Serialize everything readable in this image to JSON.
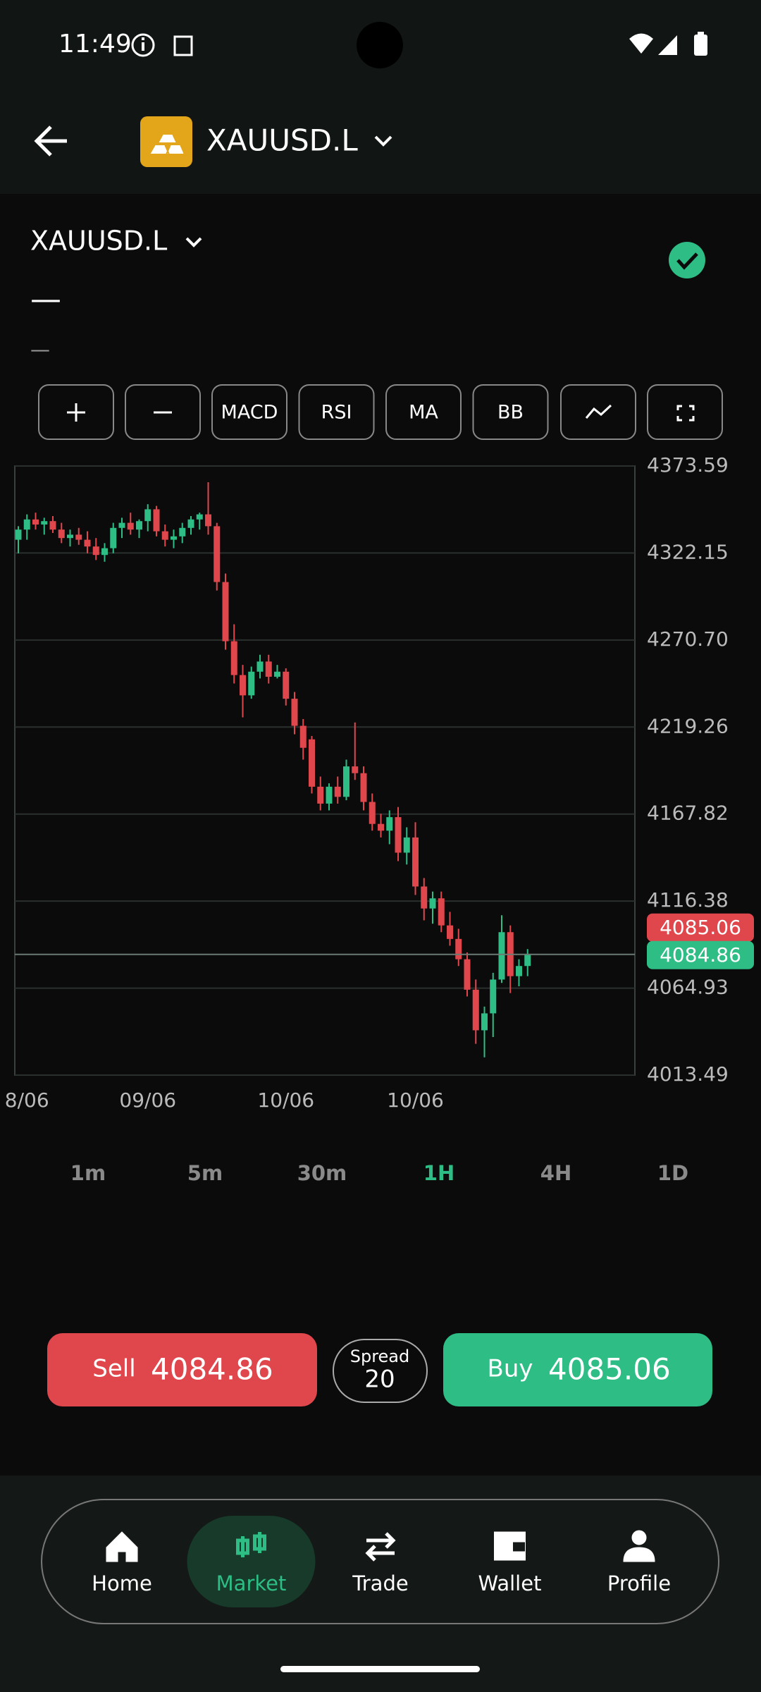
{
  "status_bar": {
    "time": "11:49"
  },
  "header": {
    "symbol": "XAUUSD.L"
  },
  "instrument": {
    "symbol": "XAUUSD.L",
    "price": "—",
    "change": "—"
  },
  "toolbar": {
    "buttons": [
      "MACD",
      "RSI",
      "MA",
      "BB"
    ]
  },
  "chart_data": {
    "type": "candlestick",
    "categories": [
      null,
      "8/06",
      null,
      null,
      null,
      null,
      null,
      null,
      null,
      null,
      null,
      null,
      null,
      null,
      null,
      "09/06",
      null,
      null,
      null,
      null,
      null,
      null,
      null,
      null,
      null,
      null,
      null,
      null,
      null,
      null,
      null,
      "10/06",
      null,
      null,
      null,
      null,
      null,
      null,
      null,
      null,
      null,
      null,
      null,
      null,
      null,
      null,
      "10/06",
      null,
      null,
      null,
      null,
      null,
      null,
      null,
      null,
      null,
      null,
      null,
      null,
      null
    ],
    "open": [
      4330,
      4336,
      4342,
      4339,
      4341,
      4336,
      4331,
      4333,
      4330,
      4326,
      4321,
      4325,
      4337,
      4340,
      4336,
      4341,
      4348,
      4335,
      4330,
      4332,
      4337,
      4342,
      4345,
      4338,
      4305,
      4270,
      4250,
      4238,
      4252,
      4258,
      4249,
      4252,
      4236,
      4220,
      4212,
      4184,
      4174,
      4184,
      4178,
      4196,
      4192,
      4175,
      4162,
      4158,
      4166,
      4145,
      4154,
      4125,
      4112,
      4118,
      4102,
      4094,
      4082,
      4064,
      4040,
      4050,
      4070,
      4098,
      4072,
      4078
    ],
    "high": [
      4338,
      4345,
      4346,
      4343,
      4344,
      4340,
      4336,
      4337,
      4335,
      4331,
      4328,
      4340,
      4343,
      4346,
      4342,
      4351,
      4350,
      4339,
      4336,
      4340,
      4344,
      4346,
      4364,
      4340,
      4310,
      4280,
      4256,
      4255,
      4262,
      4262,
      4256,
      4254,
      4240,
      4224,
      4214,
      4190,
      4186,
      4190,
      4200,
      4222,
      4196,
      4180,
      4168,
      4170,
      4172,
      4160,
      4163,
      4130,
      4122,
      4122,
      4110,
      4100,
      4086,
      4070,
      4054,
      4074,
      4108,
      4102,
      4082,
      4088
    ],
    "low": [
      4322,
      4330,
      4336,
      4333,
      4334,
      4328,
      4326,
      4327,
      4322,
      4318,
      4317,
      4322,
      4331,
      4333,
      4331,
      4335,
      4332,
      4326,
      4325,
      4328,
      4333,
      4336,
      4333,
      4300,
      4265,
      4245,
      4225,
      4236,
      4248,
      4245,
      4248,
      4232,
      4215,
      4200,
      4180,
      4170,
      4170,
      4174,
      4176,
      4188,
      4170,
      4158,
      4154,
      4150,
      4140,
      4138,
      4120,
      4105,
      4103,
      4098,
      4090,
      4078,
      4060,
      4032,
      4024,
      4036,
      4068,
      4062,
      4066,
      4072
    ],
    "close": [
      4336,
      4342,
      4339,
      4341,
      4336,
      4331,
      4333,
      4330,
      4326,
      4321,
      4325,
      4337,
      4340,
      4336,
      4341,
      4348,
      4335,
      4330,
      4332,
      4337,
      4342,
      4345,
      4338,
      4305,
      4270,
      4250,
      4238,
      4252,
      4258,
      4249,
      4252,
      4236,
      4220,
      4207,
      4184,
      4174,
      4184,
      4178,
      4196,
      4192,
      4175,
      4162,
      4158,
      4166,
      4145,
      4154,
      4125,
      4112,
      4118,
      4102,
      4094,
      4082,
      4064,
      4040,
      4050,
      4070,
      4098,
      4072,
      4078,
      4084.86
    ],
    "up_color": "#2dbd85",
    "down_color": "#e0474c",
    "ylim": [
      4013.49,
      4373.59
    ],
    "yticks": [
      4373.59,
      4322.15,
      {
        "value": 4270.7,
        "label": "4270.70"
      },
      4219.26,
      4167.82,
      4116.38,
      4064.93,
      4013.49
    ],
    "grid": true,
    "ask": 4085.06,
    "bid": 4084.86
  },
  "timeframes": {
    "items": [
      "1m",
      "5m",
      "30m",
      "1H",
      "4H",
      "1D"
    ],
    "active": 3
  },
  "trade": {
    "sell": "Sell",
    "buy": "Buy",
    "spread_label": "Spread",
    "spread": 20
  },
  "nav": {
    "items": [
      "Home",
      "Market",
      "Trade",
      "Wallet",
      "Profile"
    ],
    "active": 1
  }
}
